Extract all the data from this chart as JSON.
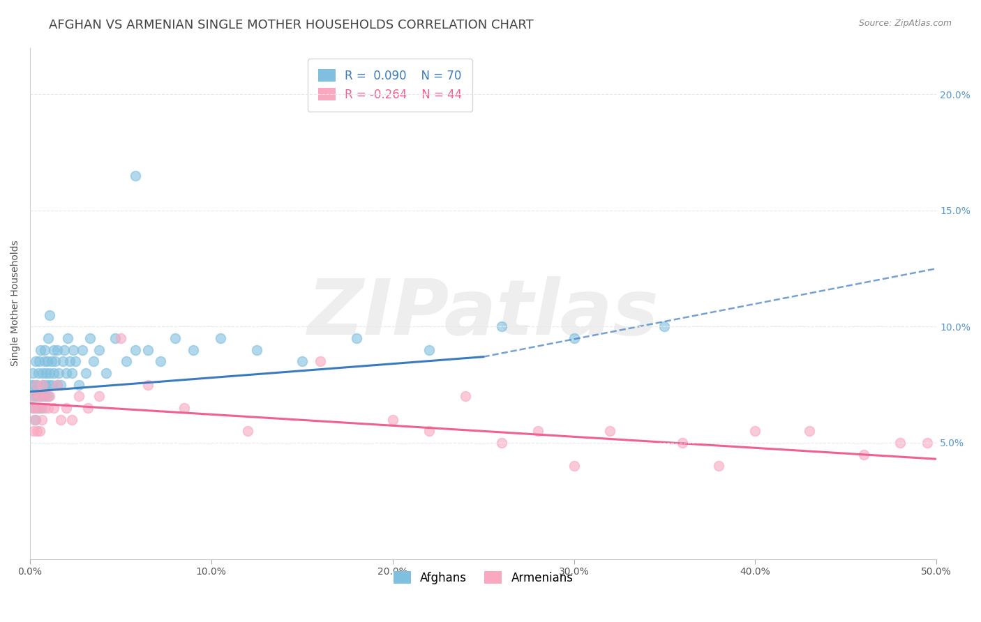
{
  "title": "AFGHAN VS ARMENIAN SINGLE MOTHER HOUSEHOLDS CORRELATION CHART",
  "source_text": "Source: ZipAtlas.com",
  "ylabel": "Single Mother Households",
  "xlim": [
    0.0,
    50.0
  ],
  "ylim": [
    0.0,
    22.0
  ],
  "xticks": [
    0.0,
    10.0,
    20.0,
    30.0,
    40.0,
    50.0
  ],
  "yticks_right": [
    5.0,
    10.0,
    15.0,
    20.0
  ],
  "afghan_color": "#7fbfdf",
  "armenian_color": "#f9a8c0",
  "afghan_line_color": "#3a7bbf",
  "armenian_line_color": "#f06090",
  "R_afghan": 0.09,
  "N_afghan": 70,
  "R_armenian": -0.264,
  "N_armenian": 44,
  "background_color": "#ffffff",
  "grid_color": "#e8e8e8",
  "watermark_text": "ZIPatlas",
  "watermark_color": "#eeeeee",
  "title_fontsize": 13,
  "label_fontsize": 10,
  "tick_fontsize": 10,
  "legend_fontsize": 12,
  "dot_size": 100,
  "afghan_scatter_x": [
    0.1,
    0.15,
    0.2,
    0.2,
    0.25,
    0.3,
    0.3,
    0.35,
    0.4,
    0.4,
    0.45,
    0.5,
    0.5,
    0.55,
    0.6,
    0.6,
    0.65,
    0.7,
    0.7,
    0.75,
    0.8,
    0.8,
    0.85,
    0.9,
    0.9,
    0.95,
    1.0,
    1.0,
    1.05,
    1.1,
    1.1,
    1.2,
    1.2,
    1.3,
    1.3,
    1.4,
    1.5,
    1.5,
    1.6,
    1.7,
    1.8,
    1.9,
    2.0,
    2.1,
    2.2,
    2.3,
    2.4,
    2.5,
    2.7,
    2.9,
    3.1,
    3.3,
    3.5,
    3.8,
    4.2,
    4.7,
    5.3,
    5.8,
    6.5,
    7.2,
    8.0,
    9.0,
    10.5,
    12.5,
    15.0,
    18.0,
    22.0,
    26.0,
    30.0,
    35.0
  ],
  "afghan_scatter_y": [
    7.5,
    8.0,
    6.5,
    7.0,
    7.5,
    6.0,
    8.5,
    7.0,
    6.5,
    7.5,
    8.0,
    7.0,
    8.5,
    6.5,
    7.0,
    9.0,
    6.5,
    7.5,
    8.0,
    7.0,
    8.5,
    9.0,
    7.5,
    8.0,
    7.0,
    8.5,
    7.0,
    9.5,
    7.5,
    8.0,
    10.5,
    8.5,
    7.5,
    9.0,
    8.0,
    8.5,
    7.5,
    9.0,
    8.0,
    7.5,
    8.5,
    9.0,
    8.0,
    9.5,
    8.5,
    8.0,
    9.0,
    8.5,
    7.5,
    9.0,
    8.0,
    9.5,
    8.5,
    9.0,
    8.0,
    9.5,
    8.5,
    9.0,
    9.0,
    8.5,
    9.5,
    9.0,
    9.5,
    9.0,
    8.5,
    9.5,
    9.0,
    10.0,
    9.5,
    10.0
  ],
  "armenian_scatter_x": [
    0.1,
    0.15,
    0.2,
    0.25,
    0.3,
    0.35,
    0.4,
    0.45,
    0.5,
    0.55,
    0.6,
    0.65,
    0.7,
    0.8,
    0.9,
    1.0,
    1.1,
    1.3,
    1.5,
    1.7,
    2.0,
    2.3,
    2.7,
    3.2,
    3.8,
    5.0,
    6.5,
    8.5,
    12.0,
    16.0,
    20.0,
    24.0,
    28.0,
    32.0,
    36.0,
    40.0,
    43.0,
    46.0,
    48.0,
    49.5,
    22.0,
    26.0,
    30.0,
    38.0
  ],
  "armenian_scatter_y": [
    7.0,
    6.5,
    5.5,
    6.0,
    6.5,
    7.5,
    5.5,
    7.0,
    6.5,
    5.5,
    7.0,
    6.0,
    7.5,
    6.5,
    7.0,
    6.5,
    7.0,
    6.5,
    7.5,
    6.0,
    6.5,
    6.0,
    7.0,
    6.5,
    7.0,
    9.5,
    7.5,
    6.5,
    5.5,
    8.5,
    6.0,
    7.0,
    5.5,
    5.5,
    5.0,
    5.5,
    5.5,
    4.5,
    5.0,
    5.0,
    5.5,
    5.0,
    4.0,
    4.0
  ],
  "afghan_line_x0": 0.0,
  "afghan_line_y0": 7.2,
  "afghan_line_x1": 25.0,
  "afghan_line_y1": 8.7,
  "afghan_dash_x0": 25.0,
  "afghan_dash_y0": 8.7,
  "afghan_dash_x1": 50.0,
  "afghan_dash_y1": 12.5,
  "armenian_line_x0": 0.0,
  "armenian_line_y0": 6.7,
  "armenian_line_x1": 50.0,
  "armenian_line_y1": 4.3,
  "outlier_x": 5.8,
  "outlier_y": 16.5
}
